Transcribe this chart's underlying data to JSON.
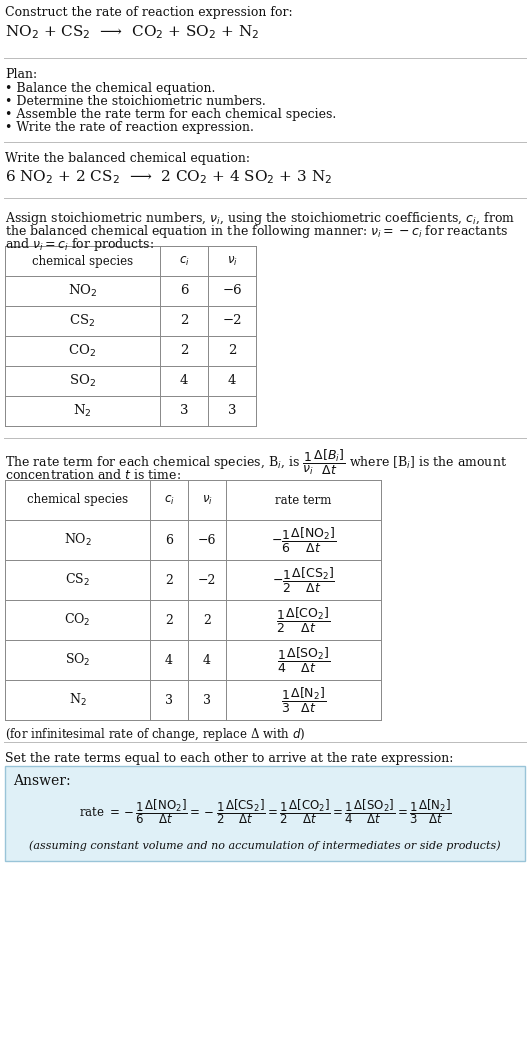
{
  "title": "Construct the rate of reaction expression for:",
  "unbalanced_eq": "NO$_2$ + CS$_2$  ⟶  CO$_2$ + SO$_2$ + N$_2$",
  "plan_title": "Plan:",
  "plan_steps": [
    "• Balance the chemical equation.",
    "• Determine the stoichiometric numbers.",
    "• Assemble the rate term for each chemical species.",
    "• Write the rate of reaction expression."
  ],
  "balanced_label": "Write the balanced chemical equation:",
  "balanced_eq": "6 NO$_2$ + 2 CS$_2$  ⟶  2 CO$_2$ + 4 SO$_2$ + 3 N$_2$",
  "stoich_intro_1": "Assign stoichiometric numbers, $\\nu_i$, using the stoichiometric coefficients, $c_i$, from",
  "stoich_intro_2": "the balanced chemical equation in the following manner: $\\nu_i = -c_i$ for reactants",
  "stoich_intro_3": "and $\\nu_i = c_i$ for products:",
  "table1_headers": [
    "chemical species",
    "$c_i$",
    "$\\nu_i$"
  ],
  "table1_data": [
    [
      "NO$_2$",
      "6",
      "−6"
    ],
    [
      "CS$_2$",
      "2",
      "−2"
    ],
    [
      "CO$_2$",
      "2",
      "2"
    ],
    [
      "SO$_2$",
      "4",
      "4"
    ],
    [
      "N$_2$",
      "3",
      "3"
    ]
  ],
  "rate_intro_1": "The rate term for each chemical species, B$_i$, is $\\dfrac{1}{\\nu_i}\\dfrac{\\Delta[B_i]}{\\Delta t}$ where [B$_i$] is the amount",
  "rate_intro_2": "concentration and $t$ is time:",
  "table2_headers": [
    "chemical species",
    "$c_i$",
    "$\\nu_i$",
    "rate term"
  ],
  "table2_data": [
    [
      "NO$_2$",
      "6",
      "−6",
      "$-\\dfrac{1}{6}\\dfrac{\\Delta[\\mathrm{NO}_2]}{\\Delta t}$"
    ],
    [
      "CS$_2$",
      "2",
      "−2",
      "$-\\dfrac{1}{2}\\dfrac{\\Delta[\\mathrm{CS}_2]}{\\Delta t}$"
    ],
    [
      "CO$_2$",
      "2",
      "2",
      "$\\dfrac{1}{2}\\dfrac{\\Delta[\\mathrm{CO}_2]}{\\Delta t}$"
    ],
    [
      "SO$_2$",
      "4",
      "4",
      "$\\dfrac{1}{4}\\dfrac{\\Delta[\\mathrm{SO}_2]}{\\Delta t}$"
    ],
    [
      "N$_2$",
      "3",
      "3",
      "$\\dfrac{1}{3}\\dfrac{\\Delta[\\mathrm{N}_2]}{\\Delta t}$"
    ]
  ],
  "infinitesimal_note": "(for infinitesimal rate of change, replace Δ with $d$)",
  "set_equal_label": "Set the rate terms equal to each other to arrive at the rate expression:",
  "answer_label": "Answer:",
  "answer_box_color": "#dff0f7",
  "answer_box_border": "#99c4d8",
  "rate_expression": "rate $= -\\dfrac{1}{6}\\dfrac{\\Delta[\\mathrm{NO}_2]}{\\Delta t} = -\\dfrac{1}{2}\\dfrac{\\Delta[\\mathrm{CS}_2]}{\\Delta t} = \\dfrac{1}{2}\\dfrac{\\Delta[\\mathrm{CO}_2]}{\\Delta t} = \\dfrac{1}{4}\\dfrac{\\Delta[\\mathrm{SO}_2]}{\\Delta t} = \\dfrac{1}{3}\\dfrac{\\Delta[\\mathrm{N}_2]}{\\Delta t}$",
  "assumption_note": "(assuming constant volume and no accumulation of intermediates or side products)",
  "bg_color": "#ffffff",
  "text_color": "#111111",
  "sep_color": "#bbbbbb",
  "table_color": "#888888"
}
